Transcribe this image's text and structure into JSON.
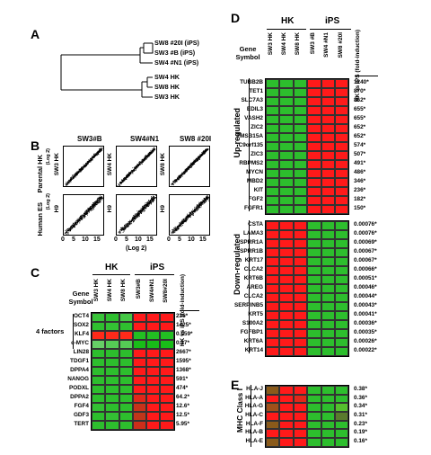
{
  "panels": {
    "A": "A",
    "B": "B",
    "C": "C",
    "D": "D",
    "E": "E"
  },
  "panelA": {
    "leaves": [
      "SW8 #20I (iPS)",
      "SW3 #B (iPS)",
      "SW4 #N1 (iPS)",
      "SW4 HK",
      "SW8 HK",
      "SW3 HK"
    ]
  },
  "panelB": {
    "col_titles": [
      "SW3#B",
      "SW4#N1",
      "SW8 #20I"
    ],
    "row_labels": [
      "Parental HK",
      "Human ES"
    ],
    "top_ylabels": [
      "SW3 HK",
      "SW4 HK",
      "SW8 HK"
    ],
    "bottom_ylabels": [
      "H9",
      "H9",
      "H9"
    ],
    "log2": "(Log 2)",
    "ticks": [
      "0",
      "5",
      "10",
      "15"
    ],
    "y_side_label": "(Log 2)"
  },
  "panelC": {
    "group_hk": "HK",
    "group_ips": "iPS",
    "gene_symbol": "Gene Symbol",
    "columns": [
      "SW3 HK",
      "SW4 HK",
      "SW8 HK",
      "SW3#B",
      "SW4#N1",
      "SW8#20I"
    ],
    "fold_header": "HK vs iPS (fold-induction)",
    "factors_label": "4 factors",
    "genes": [
      "OCT4",
      "SOX2",
      "KLF4",
      "c-MYC",
      "LIN28",
      "TDGF1",
      "DPPA4",
      "NANOG",
      "PODXL",
      "DPPA2",
      "FGF4",
      "GDF3",
      "TERT"
    ],
    "folds": [
      "236*",
      "1425*",
      "0.059*",
      "0.17*",
      "2667*",
      "1595*",
      "1368*",
      "591*",
      "474*",
      "64.2*",
      "12.6*",
      "12.5*",
      "5.95*"
    ],
    "colors": [
      [
        "#39c439",
        "#2fbf2f",
        "#45c845",
        "#ff1a1a",
        "#ff1a1a",
        "#ff1a1a"
      ],
      [
        "#2fbf2f",
        "#33c233",
        "#2fbf2f",
        "#ff1a1a",
        "#ff1a1a",
        "#ff1a1a"
      ],
      [
        "#ff2a1a",
        "#ff2a1a",
        "#ff2a1a",
        "#22c022",
        "#22c022",
        "#22c022"
      ],
      [
        "#66d066",
        "#55cc55",
        "#55cc55",
        "#18bd18",
        "#18bd18",
        "#18bd18"
      ],
      [
        "#2dbe2d",
        "#2dbe2d",
        "#2dbe2d",
        "#ff1a1a",
        "#ff1a1a",
        "#ff1a1a"
      ],
      [
        "#2dbe2d",
        "#2dbe2d",
        "#2dbe2d",
        "#ff1a1a",
        "#ff1a1a",
        "#ff1a1a"
      ],
      [
        "#2dbe2d",
        "#2dbe2d",
        "#2dbe2d",
        "#ff1a1a",
        "#ff1a1a",
        "#ff1a1a"
      ],
      [
        "#2dbe2d",
        "#2dbe2d",
        "#2dbe2d",
        "#ff1a1a",
        "#ff1a1a",
        "#ff1a1a"
      ],
      [
        "#2dbe2d",
        "#2dbe2d",
        "#2dbe2d",
        "#ff1a1a",
        "#ff1a1a",
        "#ff1a1a"
      ],
      [
        "#2dbe2d",
        "#2dbe2d",
        "#2dbe2d",
        "#e0281a",
        "#ff1a1a",
        "#ff1a1a"
      ],
      [
        "#33c033",
        "#2dbe2d",
        "#2dbe2d",
        "#c8321a",
        "#ff1a1a",
        "#ff1a1a"
      ],
      [
        "#2dbe2d",
        "#33c033",
        "#2dbe2d",
        "#c0361a",
        "#ff1a1a",
        "#ff1a1a"
      ],
      [
        "#2dbe2d",
        "#2dbe2d",
        "#2dbe2d",
        "#cc2e1a",
        "#ff1a1a",
        "#ff1a1a"
      ]
    ]
  },
  "panelD": {
    "group_hk": "HK",
    "group_ips": "iPS",
    "gene_symbol": "Gene Symbol",
    "columns": [
      "SW3 HK",
      "SW4 HK",
      "SW8 HK",
      "SW3 #B",
      "SW4 #N1",
      "SW8 #20I"
    ],
    "fold_header": "HK vs iPS (fold-induction)",
    "up_label": "Up-regulated",
    "down_label": "Down-regulated",
    "up_genes": [
      "TUBB2B",
      "TET1",
      "SLC7A3",
      "EDIL3",
      "VASH2",
      "ZIC2",
      "TMSB15A",
      "C9orf135",
      "ZIC3",
      "RBPMS2",
      "MYCN",
      "MBD2",
      "KIT",
      "FGF2",
      "FGFR1"
    ],
    "up_folds": [
      "1240*",
      "870*",
      "862*",
      "655*",
      "655*",
      "652*",
      "652*",
      "574*",
      "507*",
      "491*",
      "486*",
      "346*",
      "236*",
      "182*",
      "150*"
    ],
    "down_genes": [
      "CSTA",
      "LAMA3",
      "SPRR1A",
      "SPRR1B",
      "KRT17",
      "CLCA2",
      "KRT6B",
      "AREG",
      "CLCA2",
      "SERPINB5",
      "KRT5",
      "S100A2",
      "FGFBP1",
      "KRT6A",
      "KRT14"
    ],
    "down_folds": [
      "0.00076*",
      "0.00076*",
      "0.00069*",
      "0.00067*",
      "0.00067*",
      "0.00066*",
      "0.00051*",
      "0.00046*",
      "0.00044*",
      "0.00043*",
      "0.00041*",
      "0.00036*",
      "0.00035*",
      "0.00026*",
      "0.00022*"
    ],
    "up_color_hk": "#2dbe2d",
    "up_color_ips": "#ff1a1a",
    "down_color_hk": "#ff1a1a",
    "down_color_ips": "#2dbe2d"
  },
  "panelE": {
    "side_label": "MHC Class I",
    "genes": [
      "HLA-J",
      "HLA-A",
      "HLA-G",
      "HLA-C",
      "HLA-F",
      "HLA-B",
      "HLA-E"
    ],
    "folds": [
      "0.38*",
      "0.36*",
      "0.34*",
      "0.31*",
      "0.23*",
      "0.19*",
      "0.16*"
    ],
    "colors": [
      [
        "#8a5a1a",
        "#ff1a1a",
        "#ff1a1a",
        "#2dbe2d",
        "#2dbe2d",
        "#2dbe2d"
      ],
      [
        "#ff1a1a",
        "#ff1a1a",
        "#e0281a",
        "#2dbe2d",
        "#2dbe2d",
        "#2dbe2d"
      ],
      [
        "#a0501a",
        "#ff1a1a",
        "#ff1a1a",
        "#2dbe2d",
        "#2dbe2d",
        "#55c02d"
      ],
      [
        "#ff1a1a",
        "#ff1a1a",
        "#ff1a1a",
        "#2dbe2d",
        "#2dbe2d",
        "#5a7a2d"
      ],
      [
        "#8a5a1a",
        "#ff1a1a",
        "#ff1a1a",
        "#2dbe2d",
        "#2dbe2d",
        "#2dbe2d"
      ],
      [
        "#ff1a1a",
        "#ff1a1a",
        "#ff1a1a",
        "#2dbe2d",
        "#2dbe2d",
        "#2dbe2d"
      ],
      [
        "#8a5a1a",
        "#ff1a1a",
        "#ff1a1a",
        "#2dbe2d",
        "#2dbe2d",
        "#2dbe2d"
      ]
    ]
  }
}
